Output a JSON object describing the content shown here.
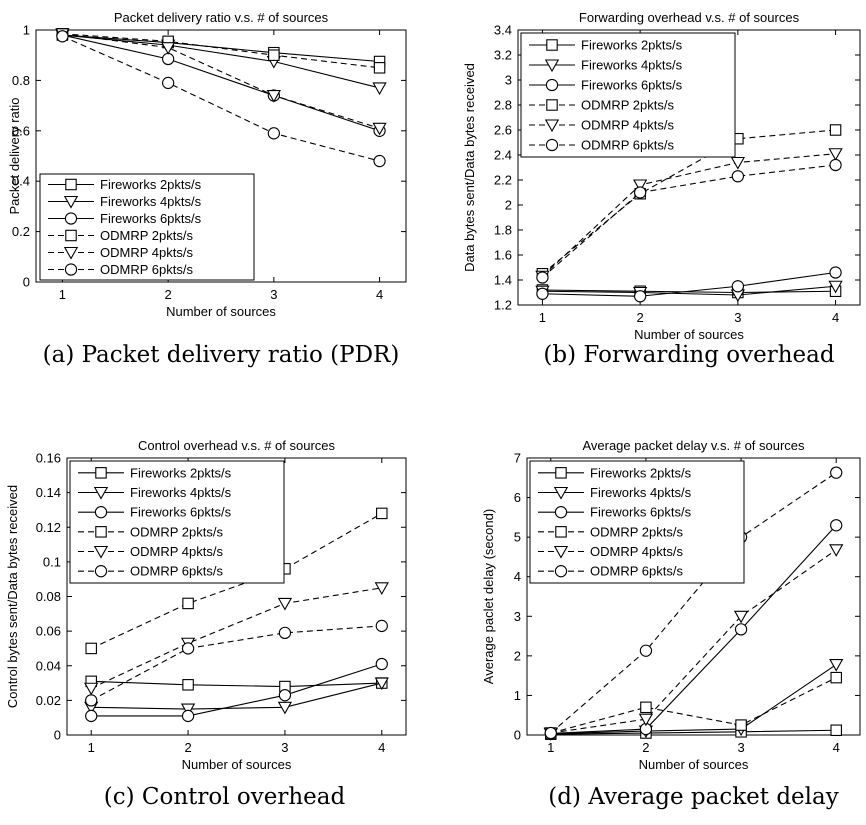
{
  "chart_data": [
    {
      "type": "line",
      "title": "Packet delivery ratio v.s. # of sources",
      "xlabel": "Number of sources",
      "ylabel": "Packet delivery ratio",
      "caption": "(a) Packet delivery ratio (PDR)",
      "x": [
        1,
        2,
        3,
        4
      ],
      "xlim": [
        0.75,
        4.25
      ],
      "ylim": [
        0,
        1
      ],
      "xticks": [
        "1",
        "2",
        "3",
        "4"
      ],
      "yticks": [
        "0",
        "0.2",
        "0.4",
        "0.6",
        "0.8",
        "1"
      ],
      "legend": "bottom-left",
      "series": [
        {
          "name": "Fireworks 2pkts/s",
          "marker": "square",
          "dash": "solid",
          "values": [
            0.98,
            0.95,
            0.91,
            0.875
          ]
        },
        {
          "name": "Fireworks 4pkts/s",
          "marker": "triangle-down",
          "dash": "solid",
          "values": [
            0.98,
            0.94,
            0.875,
            0.77
          ]
        },
        {
          "name": "Fireworks 6pkts/s",
          "marker": "circle",
          "dash": "solid",
          "values": [
            0.98,
            0.885,
            0.74,
            0.6
          ]
        },
        {
          "name": "ODMRP 2pkts/s",
          "marker": "square",
          "dash": "dashed",
          "values": [
            0.985,
            0.955,
            0.9,
            0.85
          ]
        },
        {
          "name": "ODMRP 4pkts/s",
          "marker": "triangle-down",
          "dash": "dashed",
          "values": [
            0.985,
            0.93,
            0.74,
            0.61
          ]
        },
        {
          "name": "ODMRP 6pkts/s",
          "marker": "circle",
          "dash": "dashed",
          "values": [
            0.975,
            0.79,
            0.59,
            0.48
          ]
        }
      ]
    },
    {
      "type": "line",
      "title": "Forwarding overhead v.s. # of sources",
      "xlabel": "Number of sources",
      "ylabel": "Data bytes sent/Data bytes received",
      "caption": "(b) Forwarding overhead",
      "x": [
        1,
        2,
        3,
        4
      ],
      "xlim": [
        0.75,
        4.25
      ],
      "ylim": [
        1.2,
        3.4
      ],
      "xticks": [
        "1",
        "2",
        "3",
        "4"
      ],
      "yticks": [
        "1.2",
        "1.4",
        "1.6",
        "1.8",
        "2",
        "2.2",
        "2.4",
        "2.6",
        "2.8",
        "3",
        "3.2",
        "3.4"
      ],
      "legend": "top-left",
      "series": [
        {
          "name": "Fireworks 2pkts/s",
          "marker": "square",
          "dash": "solid",
          "values": [
            1.32,
            1.31,
            1.3,
            1.31
          ]
        },
        {
          "name": "Fireworks 4pkts/s",
          "marker": "triangle-down",
          "dash": "solid",
          "values": [
            1.31,
            1.3,
            1.28,
            1.35
          ]
        },
        {
          "name": "Fireworks 6pkts/s",
          "marker": "circle",
          "dash": "solid",
          "values": [
            1.29,
            1.27,
            1.35,
            1.46
          ]
        },
        {
          "name": "ODMRP 2pkts/s",
          "marker": "square",
          "dash": "dashed",
          "values": [
            1.45,
            2.09,
            2.53,
            2.6
          ]
        },
        {
          "name": "ODMRP 4pkts/s",
          "marker": "triangle-down",
          "dash": "dashed",
          "values": [
            1.43,
            2.16,
            2.34,
            2.41
          ]
        },
        {
          "name": "ODMRP 6pkts/s",
          "marker": "circle",
          "dash": "dashed",
          "values": [
            1.42,
            2.1,
            2.23,
            2.32
          ]
        }
      ]
    },
    {
      "type": "line",
      "title": "Control overhead v.s. # of sources",
      "xlabel": "Number of sources",
      "ylabel": "Control bytes sent/Data bytes received",
      "caption": "(c) Control overhead",
      "x": [
        1,
        2,
        3,
        4
      ],
      "xlim": [
        0.75,
        4.25
      ],
      "ylim": [
        0,
        0.16
      ],
      "xticks": [
        "1",
        "2",
        "3",
        "4"
      ],
      "yticks": [
        "0",
        "0.02",
        "0.04",
        "0.06",
        "0.08",
        "0.1",
        "0.12",
        "0.14",
        "0.16"
      ],
      "legend": "top-left",
      "series": [
        {
          "name": "Fireworks 2pkts/s",
          "marker": "square",
          "dash": "solid",
          "values": [
            0.031,
            0.029,
            0.028,
            0.03
          ]
        },
        {
          "name": "Fireworks 4pkts/s",
          "marker": "triangle-down",
          "dash": "solid",
          "values": [
            0.016,
            0.015,
            0.016,
            0.03
          ]
        },
        {
          "name": "Fireworks 6pkts/s",
          "marker": "circle",
          "dash": "solid",
          "values": [
            0.011,
            0.011,
            0.023,
            0.041
          ]
        },
        {
          "name": "ODMRP 2pkts/s",
          "marker": "square",
          "dash": "dashed",
          "values": [
            0.05,
            0.076,
            0.096,
            0.128
          ]
        },
        {
          "name": "ODMRP 4pkts/s",
          "marker": "triangle-down",
          "dash": "dashed",
          "values": [
            0.027,
            0.053,
            0.076,
            0.085
          ]
        },
        {
          "name": "ODMRP 6pkts/s",
          "marker": "circle",
          "dash": "dashed",
          "values": [
            0.02,
            0.05,
            0.059,
            0.063
          ]
        }
      ]
    },
    {
      "type": "line",
      "title": "Average packet delay v.s. # of sources",
      "xlabel": "Number of sources",
      "ylabel": "Average paclet delay (second)",
      "caption": "(d) Average packet delay",
      "x": [
        1,
        2,
        3,
        4
      ],
      "xlim": [
        0.75,
        4.25
      ],
      "ylim": [
        0,
        7
      ],
      "xticks": [
        "1",
        "2",
        "3",
        "4"
      ],
      "yticks": [
        "0",
        "1",
        "2",
        "3",
        "4",
        "5",
        "6",
        "7"
      ],
      "legend": "top-left",
      "series": [
        {
          "name": "Fireworks 2pkts/s",
          "marker": "square",
          "dash": "solid",
          "values": [
            0.02,
            0.05,
            0.08,
            0.12
          ]
        },
        {
          "name": "Fireworks 4pkts/s",
          "marker": "triangle-down",
          "dash": "solid",
          "values": [
            0.03,
            0.1,
            0.15,
            1.78
          ]
        },
        {
          "name": "Fireworks 6pkts/s",
          "marker": "circle",
          "dash": "solid",
          "values": [
            0.04,
            0.15,
            2.67,
            5.3
          ]
        },
        {
          "name": "ODMRP 2pkts/s",
          "marker": "square",
          "dash": "dashed",
          "values": [
            0.05,
            0.7,
            0.25,
            1.45
          ]
        },
        {
          "name": "ODMRP 4pkts/s",
          "marker": "triangle-down",
          "dash": "dashed",
          "values": [
            0.05,
            0.4,
            3.0,
            4.68
          ]
        },
        {
          "name": "ODMRP 6pkts/s",
          "marker": "circle",
          "dash": "dashed",
          "values": [
            0.05,
            2.13,
            5.0,
            6.63
          ]
        }
      ]
    }
  ]
}
